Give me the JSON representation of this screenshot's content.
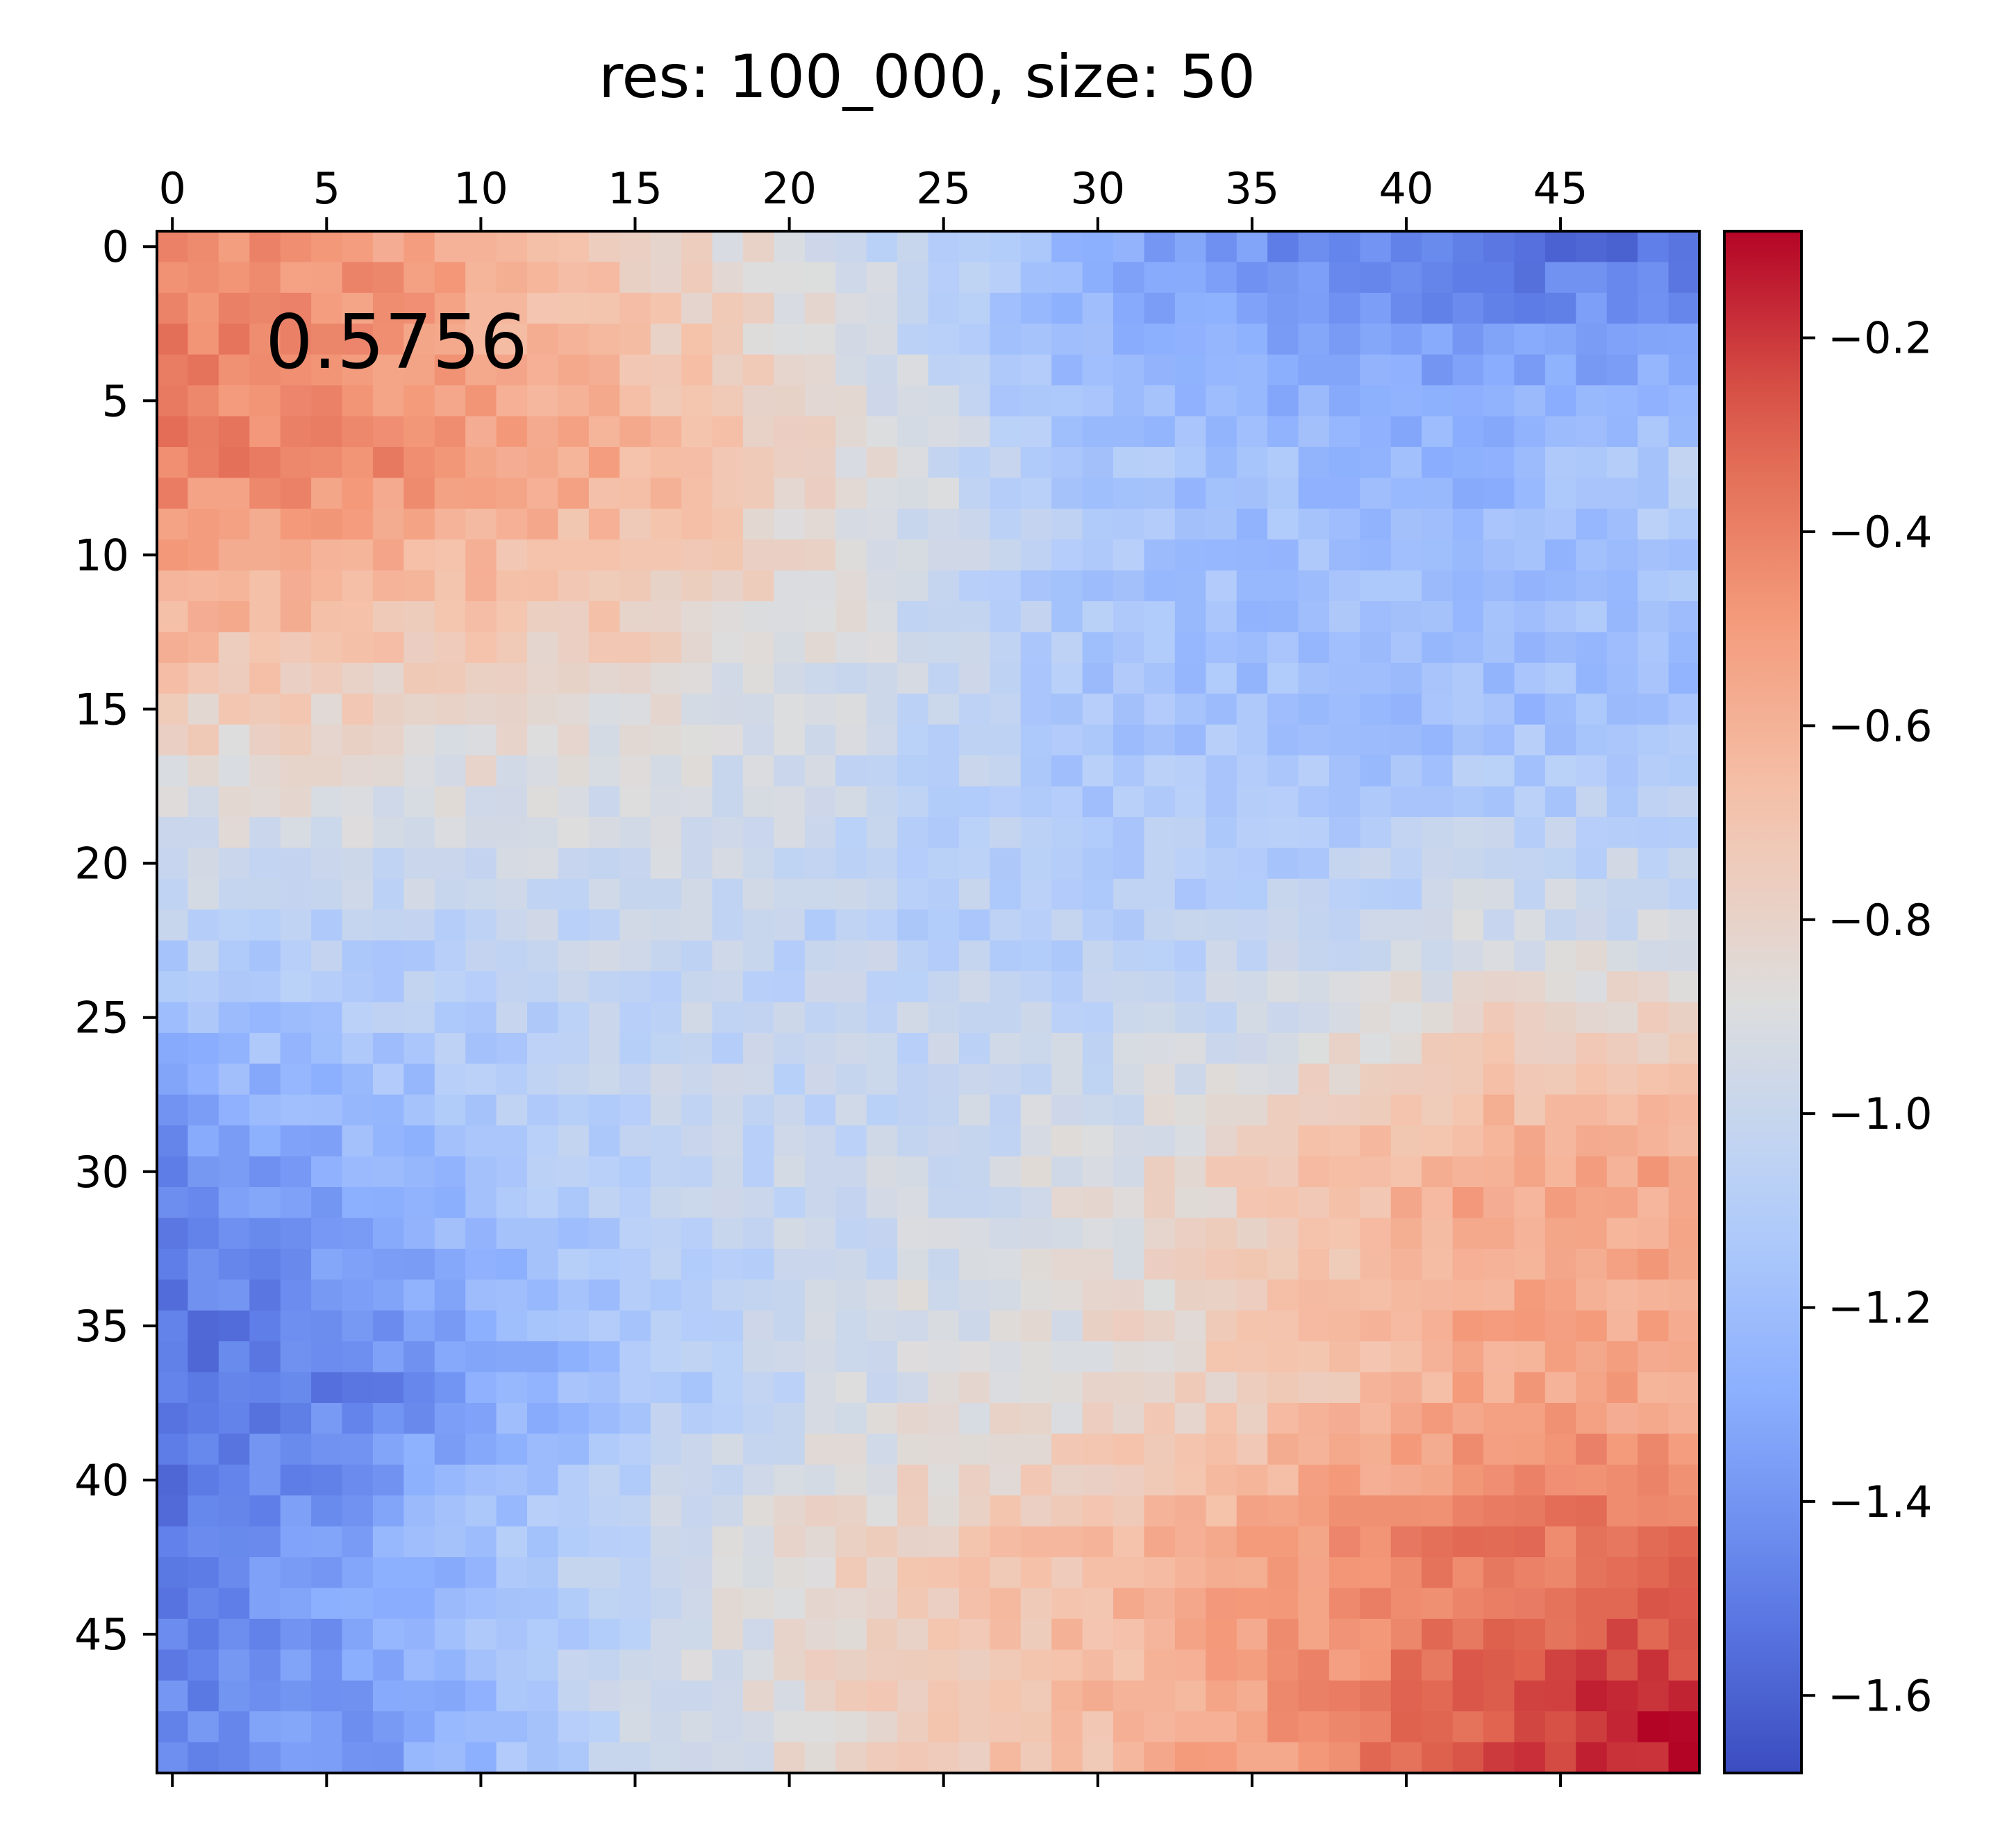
{
  "chart_data": {
    "type": "heatmap",
    "title": "res: 100_000, size: 50",
    "annotation": "0.5756",
    "size": 50,
    "x_ticks": [
      0,
      5,
      10,
      15,
      20,
      25,
      30,
      35,
      40,
      45
    ],
    "y_ticks": [
      0,
      5,
      10,
      15,
      20,
      25,
      30,
      35,
      40,
      45
    ],
    "colormap": "coolwarm",
    "vmin": -1.68,
    "vmax": -0.09,
    "colorbar_ticks": [
      "−0.2",
      "−0.4",
      "−0.6",
      "−0.8",
      "−1.0",
      "−1.2",
      "−1.4",
      "−1.6"
    ],
    "colorbar_tick_values": [
      -0.2,
      -0.4,
      -0.6,
      -0.8,
      -1.0,
      -1.2,
      -1.4,
      -1.6
    ],
    "pattern": {
      "control_rows": [
        0,
        7,
        15,
        22,
        30,
        37,
        42,
        49
      ],
      "control_cols": [
        0,
        7,
        15,
        22,
        30,
        37,
        42,
        49
      ],
      "grid": [
        [
          -0.4,
          -0.5,
          -0.75,
          -0.95,
          -1.3,
          -1.45,
          -1.5,
          -1.55
        ],
        [
          -0.4,
          -0.45,
          -0.6,
          -0.85,
          -1.15,
          -1.2,
          -1.25,
          -1.1
        ],
        [
          -0.75,
          -0.8,
          -0.85,
          -0.95,
          -1.15,
          -1.2,
          -1.2,
          -1.2
        ],
        [
          -1.05,
          -1.05,
          -1.0,
          -1.05,
          -1.1,
          -1.05,
          -0.95,
          -0.95
        ],
        [
          -1.45,
          -1.25,
          -1.05,
          -1.0,
          -0.9,
          -0.7,
          -0.55,
          -0.55
        ],
        [
          -1.55,
          -1.45,
          -1.15,
          -0.95,
          -0.85,
          -0.7,
          -0.55,
          -0.55
        ],
        [
          -1.5,
          -1.3,
          -1.0,
          -0.8,
          -0.65,
          -0.5,
          -0.4,
          -0.35
        ],
        [
          -1.45,
          -1.35,
          -1.0,
          -0.8,
          -0.65,
          -0.45,
          -0.25,
          -0.1
        ]
      ],
      "noise_amplitude": 0.08,
      "seed": 5756
    }
  }
}
